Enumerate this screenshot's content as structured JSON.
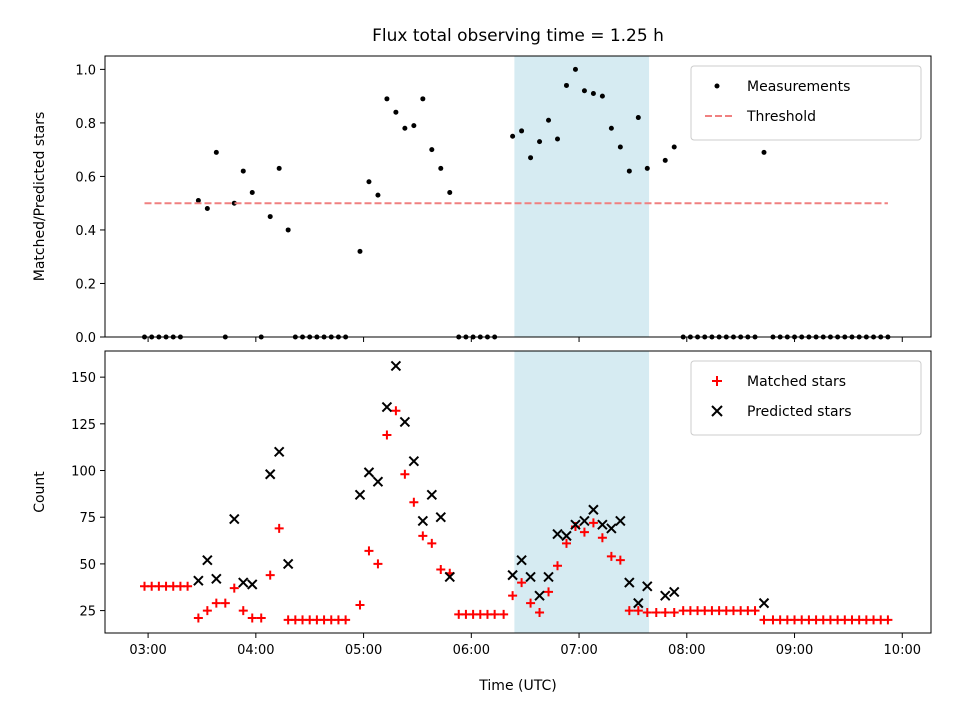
{
  "title": "Flux total observing time = 1.25 h",
  "xlabel": "Time (UTC)",
  "x_ticks": [
    "03:00",
    "04:00",
    "05:00",
    "06:00",
    "07:00",
    "08:00",
    "09:00",
    "10:00"
  ],
  "highlight_span": {
    "start": "06:24",
    "end": "07:39",
    "color": "#add8e6"
  },
  "chart_data": [
    {
      "type": "scatter",
      "panel": "top",
      "ylabel": "Matched/Predicted stars",
      "xlim": [
        "02:36",
        "10:16"
      ],
      "ylim": [
        0,
        1.05
      ],
      "y_ticks": [
        "0.0",
        "0.2",
        "0.4",
        "0.6",
        "0.8",
        "1.0"
      ],
      "legend_position": "top-right",
      "grid": false,
      "series": [
        {
          "name": "Measurements",
          "kind": "points",
          "color": "#000000",
          "points": [
            [
              "02:58",
              0
            ],
            [
              "03:02",
              0
            ],
            [
              "03:06",
              0
            ],
            [
              "03:10",
              0
            ],
            [
              "03:14",
              0
            ],
            [
              "03:18",
              0
            ],
            [
              "03:28",
              0.51
            ],
            [
              "03:33",
              0.48
            ],
            [
              "03:38",
              0.69
            ],
            [
              "03:43",
              0
            ],
            [
              "03:48",
              0.5
            ],
            [
              "03:53",
              0.62
            ],
            [
              "03:58",
              0.54
            ],
            [
              "04:03",
              0
            ],
            [
              "04:08",
              0.45
            ],
            [
              "04:13",
              0.63
            ],
            [
              "04:18",
              0.4
            ],
            [
              "04:22",
              0
            ],
            [
              "04:26",
              0
            ],
            [
              "04:30",
              0
            ],
            [
              "04:34",
              0
            ],
            [
              "04:38",
              0
            ],
            [
              "04:42",
              0
            ],
            [
              "04:46",
              0
            ],
            [
              "04:50",
              0
            ],
            [
              "04:58",
              0.32
            ],
            [
              "05:03",
              0.58
            ],
            [
              "05:08",
              0.53
            ],
            [
              "05:13",
              0.89
            ],
            [
              "05:18",
              0.84
            ],
            [
              "05:23",
              0.78
            ],
            [
              "05:28",
              0.79
            ],
            [
              "05:33",
              0.89
            ],
            [
              "05:38",
              0.7
            ],
            [
              "05:43",
              0.63
            ],
            [
              "05:48",
              0.54
            ],
            [
              "05:53",
              0
            ],
            [
              "05:57",
              0
            ],
            [
              "06:01",
              0
            ],
            [
              "06:05",
              0
            ],
            [
              "06:09",
              0
            ],
            [
              "06:13",
              0
            ],
            [
              "06:23",
              0.75
            ],
            [
              "06:28",
              0.77
            ],
            [
              "06:33",
              0.67
            ],
            [
              "06:38",
              0.73
            ],
            [
              "06:43",
              0.81
            ],
            [
              "06:48",
              0.74
            ],
            [
              "06:53",
              0.94
            ],
            [
              "06:58",
              1.0
            ],
            [
              "07:03",
              0.92
            ],
            [
              "07:08",
              0.91
            ],
            [
              "07:13",
              0.9
            ],
            [
              "07:18",
              0.78
            ],
            [
              "07:23",
              0.71
            ],
            [
              "07:28",
              0.62
            ],
            [
              "07:33",
              0.82
            ],
            [
              "07:38",
              0.63
            ],
            [
              "07:48",
              0.66
            ],
            [
              "07:53",
              0.71
            ],
            [
              "07:58",
              0
            ],
            [
              "08:02",
              0
            ],
            [
              "08:06",
              0
            ],
            [
              "08:10",
              0
            ],
            [
              "08:14",
              0
            ],
            [
              "08:18",
              0
            ],
            [
              "08:22",
              0
            ],
            [
              "08:26",
              0
            ],
            [
              "08:30",
              0
            ],
            [
              "08:34",
              0
            ],
            [
              "08:38",
              0
            ],
            [
              "08:43",
              0.69
            ],
            [
              "08:48",
              0
            ],
            [
              "08:52",
              0
            ],
            [
              "08:56",
              0
            ],
            [
              "09:00",
              0
            ],
            [
              "09:04",
              0
            ],
            [
              "09:08",
              0
            ],
            [
              "09:12",
              0
            ],
            [
              "09:16",
              0
            ],
            [
              "09:20",
              0
            ],
            [
              "09:24",
              0
            ],
            [
              "09:28",
              0
            ],
            [
              "09:32",
              0
            ],
            [
              "09:36",
              0
            ],
            [
              "09:40",
              0
            ],
            [
              "09:44",
              0
            ],
            [
              "09:48",
              0
            ],
            [
              "09:52",
              0
            ]
          ]
        },
        {
          "name": "Threshold",
          "kind": "dashed-line",
          "color": "#f08080",
          "points": [
            [
              "02:58",
              0.5
            ],
            [
              "09:52",
              0.5
            ]
          ]
        }
      ]
    },
    {
      "type": "scatter",
      "panel": "bottom",
      "ylabel": "Count",
      "xlim": [
        "02:36",
        "10:16"
      ],
      "ylim": [
        13,
        164
      ],
      "y_ticks": [
        "25",
        "50",
        "75",
        "100",
        "125",
        "150"
      ],
      "legend_position": "top-right",
      "grid": false,
      "series": [
        {
          "name": "Matched stars",
          "marker": "+",
          "color": "#ff0000",
          "points": [
            [
              "02:58",
              38
            ],
            [
              "03:02",
              38
            ],
            [
              "03:06",
              38
            ],
            [
              "03:10",
              38
            ],
            [
              "03:14",
              38
            ],
            [
              "03:18",
              38
            ],
            [
              "03:22",
              38
            ],
            [
              "03:28",
              21
            ],
            [
              "03:33",
              25
            ],
            [
              "03:38",
              29
            ],
            [
              "03:43",
              29
            ],
            [
              "03:48",
              37
            ],
            [
              "03:53",
              25
            ],
            [
              "03:58",
              21
            ],
            [
              "04:03",
              21
            ],
            [
              "04:08",
              44
            ],
            [
              "04:13",
              69
            ],
            [
              "04:18",
              20
            ],
            [
              "04:22",
              20
            ],
            [
              "04:26",
              20
            ],
            [
              "04:30",
              20
            ],
            [
              "04:34",
              20
            ],
            [
              "04:38",
              20
            ],
            [
              "04:42",
              20
            ],
            [
              "04:46",
              20
            ],
            [
              "04:50",
              20
            ],
            [
              "04:58",
              28
            ],
            [
              "05:03",
              57
            ],
            [
              "05:08",
              50
            ],
            [
              "05:13",
              119
            ],
            [
              "05:18",
              132
            ],
            [
              "05:23",
              98
            ],
            [
              "05:28",
              83
            ],
            [
              "05:33",
              65
            ],
            [
              "05:38",
              61
            ],
            [
              "05:43",
              47
            ],
            [
              "05:48",
              45
            ],
            [
              "05:53",
              23
            ],
            [
              "05:57",
              23
            ],
            [
              "06:01",
              23
            ],
            [
              "06:05",
              23
            ],
            [
              "06:09",
              23
            ],
            [
              "06:13",
              23
            ],
            [
              "06:18",
              23
            ],
            [
              "06:23",
              33
            ],
            [
              "06:28",
              40
            ],
            [
              "06:33",
              29
            ],
            [
              "06:38",
              24
            ],
            [
              "06:43",
              35
            ],
            [
              "06:48",
              49
            ],
            [
              "06:53",
              61
            ],
            [
              "06:58",
              70
            ],
            [
              "07:03",
              67
            ],
            [
              "07:08",
              72
            ],
            [
              "07:13",
              64
            ],
            [
              "07:18",
              54
            ],
            [
              "07:23",
              52
            ],
            [
              "07:28",
              25
            ],
            [
              "07:33",
              25
            ],
            [
              "07:38",
              24
            ],
            [
              "07:43",
              24
            ],
            [
              "07:48",
              24
            ],
            [
              "07:53",
              24
            ],
            [
              "07:58",
              25
            ],
            [
              "08:02",
              25
            ],
            [
              "08:06",
              25
            ],
            [
              "08:10",
              25
            ],
            [
              "08:14",
              25
            ],
            [
              "08:18",
              25
            ],
            [
              "08:22",
              25
            ],
            [
              "08:26",
              25
            ],
            [
              "08:30",
              25
            ],
            [
              "08:34",
              25
            ],
            [
              "08:38",
              25
            ],
            [
              "08:43",
              20
            ],
            [
              "08:48",
              20
            ],
            [
              "08:52",
              20
            ],
            [
              "08:56",
              20
            ],
            [
              "09:00",
              20
            ],
            [
              "09:04",
              20
            ],
            [
              "09:08",
              20
            ],
            [
              "09:12",
              20
            ],
            [
              "09:16",
              20
            ],
            [
              "09:20",
              20
            ],
            [
              "09:24",
              20
            ],
            [
              "09:28",
              20
            ],
            [
              "09:32",
              20
            ],
            [
              "09:36",
              20
            ],
            [
              "09:40",
              20
            ],
            [
              "09:44",
              20
            ],
            [
              "09:48",
              20
            ],
            [
              "09:52",
              20
            ]
          ]
        },
        {
          "name": "Predicted stars",
          "marker": "x",
          "color": "#000000",
          "points": [
            [
              "03:28",
              41
            ],
            [
              "03:33",
              52
            ],
            [
              "03:38",
              42
            ],
            [
              "03:48",
              74
            ],
            [
              "03:53",
              40
            ],
            [
              "03:58",
              39
            ],
            [
              "04:08",
              98
            ],
            [
              "04:13",
              110
            ],
            [
              "04:18",
              50
            ],
            [
              "04:58",
              87
            ],
            [
              "05:03",
              99
            ],
            [
              "05:08",
              94
            ],
            [
              "05:13",
              134
            ],
            [
              "05:18",
              156
            ],
            [
              "05:23",
              126
            ],
            [
              "05:28",
              105
            ],
            [
              "05:33",
              73
            ],
            [
              "05:38",
              87
            ],
            [
              "05:43",
              75
            ],
            [
              "05:48",
              43
            ],
            [
              "06:23",
              44
            ],
            [
              "06:28",
              52
            ],
            [
              "06:33",
              43
            ],
            [
              "06:38",
              33
            ],
            [
              "06:43",
              43
            ],
            [
              "06:48",
              66
            ],
            [
              "06:53",
              65
            ],
            [
              "06:58",
              71
            ],
            [
              "07:03",
              73
            ],
            [
              "07:08",
              79
            ],
            [
              "07:13",
              71
            ],
            [
              "07:18",
              69
            ],
            [
              "07:23",
              73
            ],
            [
              "07:28",
              40
            ],
            [
              "07:33",
              29
            ],
            [
              "07:38",
              38
            ],
            [
              "07:48",
              33
            ],
            [
              "07:53",
              35
            ],
            [
              "08:43",
              29
            ]
          ]
        }
      ]
    }
  ]
}
